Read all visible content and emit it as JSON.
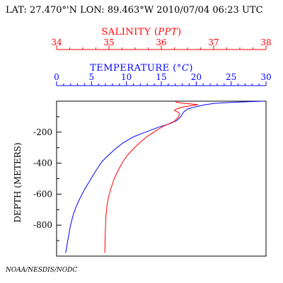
{
  "header": {
    "text": "LAT: 27.470°'N LON: 89.463°W 2010/07/04 06:23 UTC"
  },
  "credit": "NOAA/NESDIS/NODC",
  "colors": {
    "salinity": "#ff0000",
    "temperature": "#0000ff",
    "axes": "#000000"
  },
  "chart_data": {
    "type": "line",
    "salinity_axis": {
      "label_prefix": "SALINITY (",
      "label_unit": "PPT",
      "label_suffix": ")",
      "range": [
        34,
        38
      ],
      "ticks": [
        "34",
        "35",
        "36",
        "37",
        "38"
      ]
    },
    "temperature_axis": {
      "label_prefix": "TEMPERATURE (",
      "label_unit": "°C",
      "label_suffix": ")",
      "range": [
        0,
        30
      ],
      "ticks": [
        "0",
        "5",
        "10",
        "15",
        "20",
        "25",
        "30"
      ]
    },
    "depth_axis": {
      "label": "DEPTH (METERS)",
      "range": [
        0,
        -1000
      ],
      "ticks": [
        "-200",
        "-400",
        "-600",
        "-800"
      ],
      "tick_values": [
        -200,
        -400,
        -600,
        -800
      ]
    },
    "series": [
      {
        "variable": "temperature",
        "points": [
          [
            29.7,
            0
          ],
          [
            28.5,
            -2
          ],
          [
            26.5,
            -5
          ],
          [
            24.0,
            -10
          ],
          [
            22.5,
            -15
          ],
          [
            21.0,
            -25
          ],
          [
            20.0,
            -35
          ],
          [
            18.8,
            -50
          ],
          [
            18.2,
            -70
          ],
          [
            17.8,
            -100
          ],
          [
            17.2,
            -125
          ],
          [
            16.2,
            -145
          ],
          [
            14.5,
            -170
          ],
          [
            12.7,
            -200
          ],
          [
            11.0,
            -230
          ],
          [
            9.5,
            -270
          ],
          [
            8.5,
            -305
          ],
          [
            7.5,
            -345
          ],
          [
            6.5,
            -390
          ],
          [
            5.6,
            -450
          ],
          [
            4.8,
            -510
          ],
          [
            4.0,
            -570
          ],
          [
            3.3,
            -630
          ],
          [
            2.8,
            -680
          ],
          [
            2.4,
            -730
          ],
          [
            2.0,
            -800
          ],
          [
            1.6,
            -900
          ],
          [
            1.3,
            -980
          ]
        ]
      },
      {
        "variable": "salinity",
        "points": [
          [
            36.3,
            0
          ],
          [
            36.28,
            -5
          ],
          [
            36.35,
            -10
          ],
          [
            36.45,
            -15
          ],
          [
            36.7,
            -22
          ],
          [
            36.55,
            -30
          ],
          [
            36.38,
            -40
          ],
          [
            36.3,
            -50
          ],
          [
            36.25,
            -60
          ],
          [
            36.32,
            -70
          ],
          [
            36.35,
            -85
          ],
          [
            36.33,
            -100
          ],
          [
            36.25,
            -130
          ],
          [
            36.05,
            -160
          ],
          [
            35.9,
            -190
          ],
          [
            35.72,
            -230
          ],
          [
            35.58,
            -270
          ],
          [
            35.46,
            -310
          ],
          [
            35.35,
            -350
          ],
          [
            35.25,
            -400
          ],
          [
            35.17,
            -450
          ],
          [
            35.1,
            -500
          ],
          [
            35.04,
            -560
          ],
          [
            34.99,
            -620
          ],
          [
            34.96,
            -680
          ],
          [
            34.94,
            -750
          ],
          [
            34.93,
            -850
          ],
          [
            34.92,
            -980
          ]
        ]
      }
    ]
  }
}
